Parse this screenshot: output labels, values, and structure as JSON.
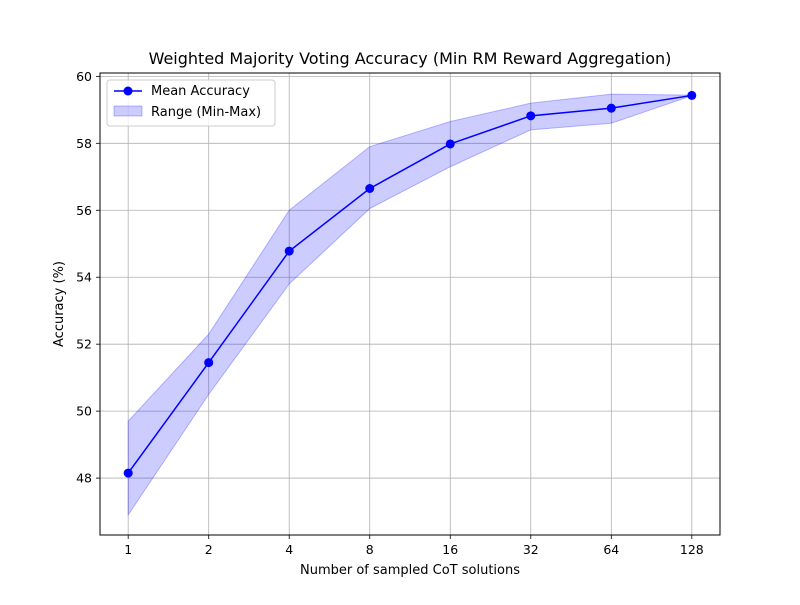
{
  "chart_data": {
    "type": "line",
    "title": "Weighted Majority Voting Accuracy (Min RM Reward Aggregation)",
    "xlabel": "Number of sampled CoT solutions",
    "ylabel": "Accuracy (%)",
    "x_scale": "log2",
    "categories": [
      "1",
      "2",
      "4",
      "8",
      "16",
      "32",
      "64",
      "128"
    ],
    "x": [
      1,
      2,
      4,
      8,
      16,
      32,
      64,
      128
    ],
    "ylim": [
      46.3,
      60.1
    ],
    "yticks": [
      "48",
      "50",
      "52",
      "54",
      "56",
      "58",
      "60"
    ],
    "grid": true,
    "legend_position": "top-left",
    "series": [
      {
        "name": "Mean Accuracy",
        "kind": "line-with-markers",
        "color": "#0000ff",
        "values": [
          48.15,
          51.45,
          54.78,
          56.65,
          57.98,
          58.82,
          59.05,
          59.43
        ]
      },
      {
        "name": "Range (Min-Max)",
        "kind": "band",
        "color": "#0000ff",
        "opacity": 0.2,
        "lower": [
          46.9,
          50.5,
          53.8,
          56.05,
          57.3,
          58.4,
          58.6,
          59.42
        ],
        "upper": [
          49.7,
          52.3,
          56.0,
          57.9,
          58.65,
          59.2,
          59.47,
          59.44
        ]
      }
    ]
  }
}
